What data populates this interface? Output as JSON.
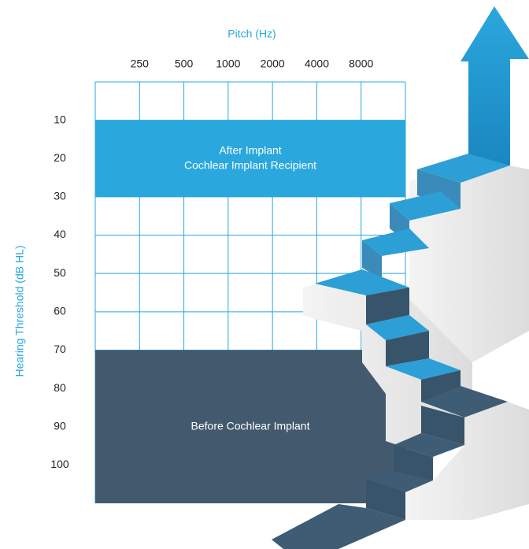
{
  "chart_data": {
    "type": "band",
    "xlabel": "Pitch (Hz)",
    "ylabel": "Hearing Threshold (dB HL)",
    "categories": [
      "250",
      "500",
      "1000",
      "2000",
      "4000",
      "8000"
    ],
    "ylim": [
      0,
      110
    ],
    "yticks": [
      10,
      20,
      30,
      40,
      50,
      60,
      70,
      80,
      90,
      100
    ],
    "grid": true,
    "bands": [
      {
        "label": [
          "After Implant",
          "Cochlear Implant Recipient"
        ],
        "range": [
          10,
          30
        ],
        "color": "#2aa7dc"
      },
      {
        "label": [
          "Before Cochlear Implant"
        ],
        "range": [
          70,
          110
        ],
        "color": "#435a6e"
      }
    ]
  }
}
